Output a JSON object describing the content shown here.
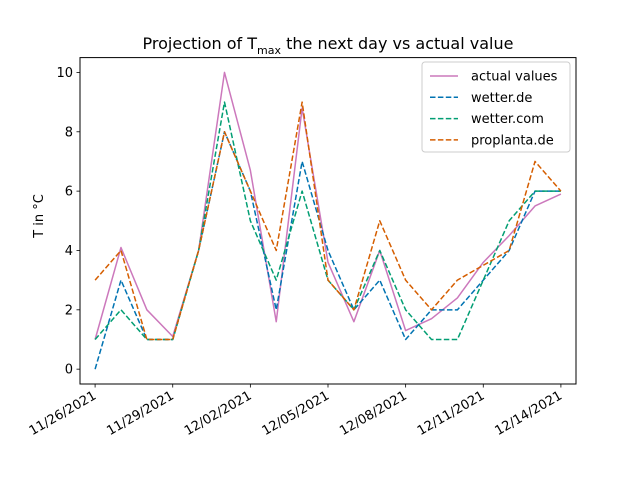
{
  "chart_data": {
    "type": "line",
    "title": {
      "prefix": "Projection of ",
      "symbol": "T",
      "subscript": "max",
      "suffix": " the next day vs actual value"
    },
    "xlabel": "",
    "ylabel": "T in °C",
    "x": [
      "2021-11-26",
      "2021-11-27",
      "2021-11-28",
      "2021-11-29",
      "2021-11-30",
      "2021-12-01",
      "2021-12-02",
      "2021-12-03",
      "2021-12-04",
      "2021-12-05",
      "2021-12-06",
      "2021-12-07",
      "2021-12-08",
      "2021-12-09",
      "2021-12-10",
      "2021-12-11",
      "2021-12-12",
      "2021-12-13",
      "2021-12-14"
    ],
    "xticks": [
      "11/26/2021",
      "11/29/2021",
      "12/02/2021",
      "12/05/2021",
      "12/08/2021",
      "12/11/2021",
      "12/14/2021"
    ],
    "yticks": [
      0,
      2,
      4,
      6,
      8,
      10
    ],
    "ylim": [
      -0.5,
      10.5
    ],
    "xlim": [
      "2021-11-25T10:00",
      "2021-12-14T14:00"
    ],
    "grid": false,
    "legend_position": "top-right",
    "series": [
      {
        "name": "actual values",
        "color": "#cc78bc",
        "dash": "solid",
        "values": [
          1.0,
          4.1,
          2.0,
          1.1,
          4.0,
          10.0,
          6.7,
          1.6,
          8.8,
          3.6,
          1.6,
          4.0,
          1.3,
          1.7,
          2.4,
          3.6,
          4.5,
          5.5,
          5.9
        ]
      },
      {
        "name": "wetter.de",
        "color": "#0173b2",
        "dash": "dashed",
        "values": [
          0.0,
          3.0,
          1.0,
          1.0,
          4.0,
          8.0,
          6.0,
          2.0,
          7.0,
          4.0,
          2.0,
          3.0,
          1.0,
          2.0,
          2.0,
          3.0,
          4.0,
          6.0,
          6.0
        ]
      },
      {
        "name": "wetter.com",
        "color": "#029e73",
        "dash": "dashed",
        "values": [
          1.0,
          2.0,
          1.0,
          1.0,
          4.0,
          9.0,
          5.0,
          3.0,
          6.0,
          3.0,
          2.0,
          4.0,
          2.0,
          1.0,
          1.0,
          3.0,
          5.0,
          6.0,
          6.0
        ]
      },
      {
        "name": "proplanta.de",
        "color": "#d55e00",
        "dash": "dashed",
        "values": [
          3.0,
          4.0,
          1.0,
          1.0,
          4.0,
          8.0,
          6.0,
          4.0,
          9.0,
          3.0,
          2.0,
          5.0,
          3.0,
          2.0,
          3.0,
          3.5,
          4.0,
          7.0,
          6.0
        ]
      }
    ]
  }
}
